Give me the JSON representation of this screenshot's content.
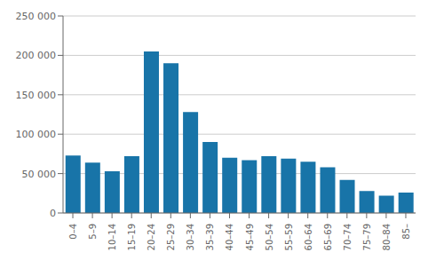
{
  "chart_data": {
    "type": "bar",
    "categories": [
      "0–4",
      "5–9",
      "10–14",
      "15–19",
      "20–24",
      "25–29",
      "30–34",
      "35–39",
      "40–44",
      "45–49",
      "50–54",
      "55–59",
      "60–64",
      "65–69",
      "70–74",
      "75–79",
      "80–84",
      "85–"
    ],
    "values": [
      73000,
      64000,
      53000,
      72000,
      205000,
      190000,
      128000,
      90000,
      70000,
      67000,
      72000,
      69000,
      65000,
      58000,
      42000,
      28000,
      22000,
      26000
    ],
    "color": "#1874a8",
    "ylim": [
      0,
      250000
    ],
    "yticks": [
      0,
      {
        "value": 50000,
        "label": "50 000"
      },
      {
        "value": 100000,
        "label": "100 000"
      },
      {
        "value": 150000,
        "label": "150 000"
      },
      {
        "value": 200000,
        "label": "200 000"
      },
      {
        "value": 250000,
        "label": "250 000"
      }
    ],
    "grid": true
  }
}
